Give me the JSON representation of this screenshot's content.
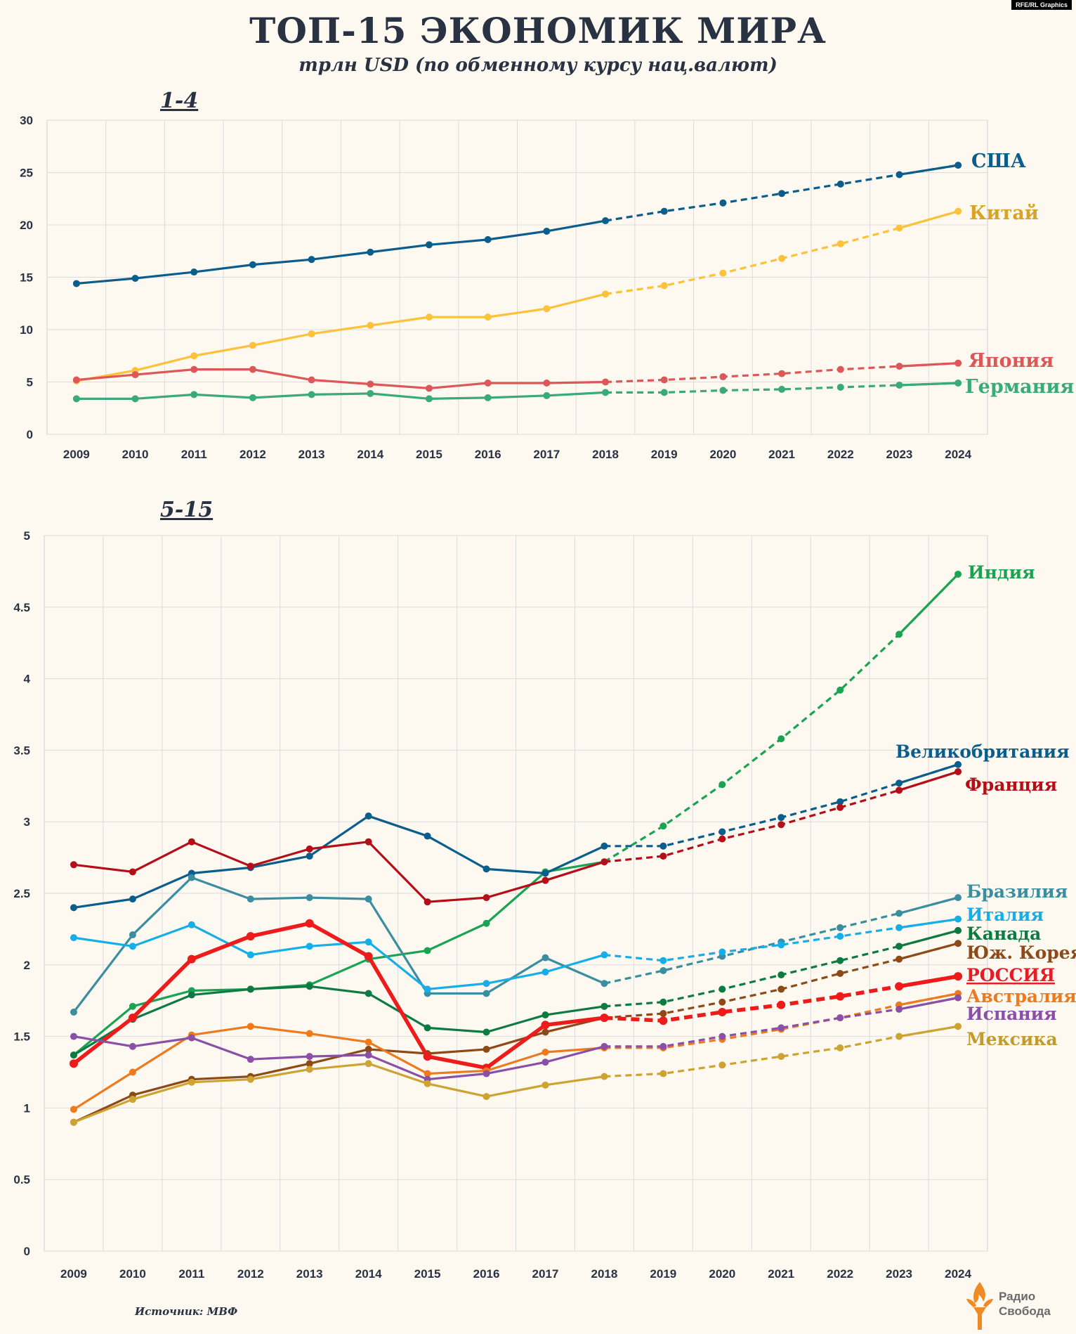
{
  "credit": "RFE/RL Graphics",
  "title": "ТОП-15 ЭКОНОМИК МИРА",
  "subtitle": "трлн USD (по обменному курсу нац.валют)",
  "source": "Источник: МВФ",
  "logo": {
    "line1": "Радио",
    "line2": "Свобода",
    "icon": "torch-icon"
  },
  "chart_data": [
    {
      "type": "line",
      "title": "1-4",
      "ylim": [
        0,
        30
      ],
      "yticks": [
        "0",
        "5",
        "10",
        "15",
        "20",
        "25",
        "30"
      ],
      "x": [
        "2009",
        "2010",
        "2011",
        "2012",
        "2013",
        "2014",
        "2015",
        "2016",
        "2017",
        "2018",
        "2019",
        "2020",
        "2021",
        "2022",
        "2023",
        "2024"
      ],
      "forecast_from": "2018",
      "grid": true,
      "series": [
        {
          "name": "США",
          "color": "#0b5d8c",
          "bold": false,
          "values": [
            14.4,
            14.9,
            15.5,
            16.2,
            16.7,
            17.4,
            18.1,
            18.6,
            19.4,
            20.4,
            21.3,
            22.1,
            23.0,
            23.9,
            24.8,
            25.7
          ]
        },
        {
          "name": "Китай",
          "color": "#fbc23a",
          "label_color": "#d9a327",
          "bold": false,
          "values": [
            5.1,
            6.1,
            7.5,
            8.5,
            9.6,
            10.4,
            11.2,
            11.2,
            12.0,
            13.4,
            14.2,
            15.4,
            16.8,
            18.2,
            19.7,
            21.3
          ]
        },
        {
          "name": "Япония",
          "color": "#dc5757",
          "bold": false,
          "values": [
            5.2,
            5.7,
            6.2,
            6.2,
            5.2,
            4.8,
            4.4,
            4.9,
            4.9,
            5.0,
            5.2,
            5.5,
            5.8,
            6.2,
            6.5,
            6.8
          ]
        },
        {
          "name": "Германия",
          "color": "#3aaa7a",
          "bold": false,
          "values": [
            3.4,
            3.4,
            3.8,
            3.5,
            3.8,
            3.9,
            3.4,
            3.5,
            3.7,
            4.0,
            4.0,
            4.2,
            4.3,
            4.5,
            4.7,
            4.9
          ]
        }
      ]
    },
    {
      "type": "line",
      "title": "5-15",
      "ylim": [
        0,
        5
      ],
      "yticks": [
        "0",
        "0.5",
        "1",
        "1.5",
        "2",
        "2.5",
        "3",
        "3.5",
        "4",
        "4.5",
        "5"
      ],
      "x": [
        "2009",
        "2010",
        "2011",
        "2012",
        "2013",
        "2014",
        "2015",
        "2016",
        "2017",
        "2018",
        "2019",
        "2020",
        "2021",
        "2022",
        "2023",
        "2024"
      ],
      "forecast_from": "2018",
      "grid": true,
      "series": [
        {
          "name": "Индия",
          "color": "#1aa352",
          "bold": false,
          "values": [
            1.37,
            1.71,
            1.82,
            1.83,
            1.86,
            2.04,
            2.1,
            2.29,
            2.65,
            2.72,
            2.97,
            3.26,
            3.58,
            3.92,
            4.31,
            4.73
          ]
        },
        {
          "name": "Великобритания",
          "color": "#0b5d8c",
          "bold": false,
          "values": [
            2.4,
            2.46,
            2.64,
            2.68,
            2.76,
            3.04,
            2.9,
            2.67,
            2.64,
            2.83,
            2.83,
            2.93,
            3.03,
            3.14,
            3.27,
            3.4
          ]
        },
        {
          "name": "Франция",
          "color": "#b40f18",
          "bold": false,
          "values": [
            2.7,
            2.65,
            2.86,
            2.69,
            2.81,
            2.86,
            2.44,
            2.47,
            2.59,
            2.72,
            2.76,
            2.88,
            2.98,
            3.1,
            3.22,
            3.35
          ]
        },
        {
          "name": "Бразилия",
          "color": "#3a8ea0",
          "bold": false,
          "values": [
            1.67,
            2.21,
            2.61,
            2.46,
            2.47,
            2.46,
            1.8,
            1.8,
            2.05,
            1.87,
            1.96,
            2.06,
            2.16,
            2.26,
            2.36,
            2.47
          ]
        },
        {
          "name": "Италия",
          "color": "#17aee8",
          "bold": false,
          "values": [
            2.19,
            2.13,
            2.28,
            2.07,
            2.13,
            2.16,
            1.83,
            1.87,
            1.95,
            2.07,
            2.03,
            2.09,
            2.14,
            2.2,
            2.26,
            2.32
          ]
        },
        {
          "name": "Канада",
          "color": "#0e7a43",
          "bold": false,
          "values": [
            1.37,
            1.62,
            1.79,
            1.83,
            1.85,
            1.8,
            1.56,
            1.53,
            1.65,
            1.71,
            1.74,
            1.83,
            1.93,
            2.03,
            2.13,
            2.24
          ]
        },
        {
          "name": "Юж. Корея",
          "color": "#8e4a16",
          "bold": false,
          "values": [
            0.9,
            1.09,
            1.2,
            1.22,
            1.31,
            1.41,
            1.38,
            1.41,
            1.53,
            1.63,
            1.66,
            1.74,
            1.83,
            1.94,
            2.04,
            2.15
          ]
        },
        {
          "name": "РОССИЯ",
          "color": "#ee1b1b",
          "label_color": "#e31e24",
          "bold": true,
          "values": [
            1.31,
            1.63,
            2.04,
            2.2,
            2.29,
            2.06,
            1.36,
            1.28,
            1.58,
            1.63,
            1.61,
            1.67,
            1.72,
            1.78,
            1.85,
            1.92
          ]
        },
        {
          "name": "Австралия",
          "color": "#ee7a1e",
          "bold": false,
          "values": [
            0.99,
            1.25,
            1.51,
            1.57,
            1.52,
            1.46,
            1.24,
            1.26,
            1.39,
            1.42,
            1.42,
            1.48,
            1.55,
            1.63,
            1.72,
            1.8
          ]
        },
        {
          "name": "Испания",
          "color": "#8a4fa6",
          "bold": false,
          "values": [
            1.5,
            1.43,
            1.49,
            1.34,
            1.36,
            1.37,
            1.2,
            1.24,
            1.32,
            1.43,
            1.43,
            1.5,
            1.56,
            1.63,
            1.69,
            1.77
          ]
        },
        {
          "name": "Мексика",
          "color": "#cda331",
          "label_color": "#c49a2a",
          "bold": false,
          "values": [
            0.9,
            1.06,
            1.18,
            1.2,
            1.27,
            1.31,
            1.17,
            1.08,
            1.16,
            1.22,
            1.24,
            1.3,
            1.36,
            1.42,
            1.5,
            1.57
          ]
        }
      ]
    }
  ]
}
